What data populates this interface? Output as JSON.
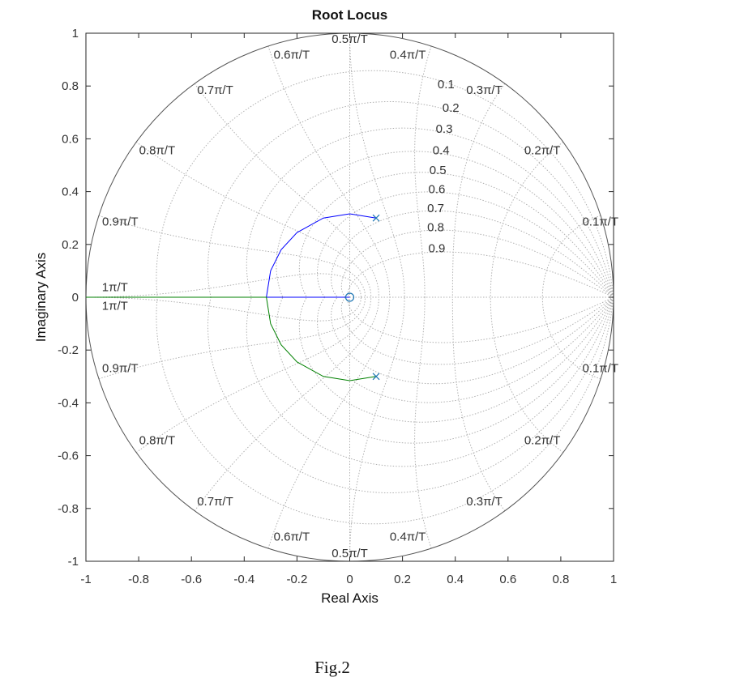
{
  "chart_data": {
    "type": "root-locus",
    "title": "Root Locus",
    "xlabel": "Real Axis",
    "ylabel": "Imaginary Axis",
    "xlim": [
      -1,
      1
    ],
    "ylim": [
      -1,
      1
    ],
    "grid": true,
    "xticks": [
      "-1",
      "-0.8",
      "-0.6",
      "-0.4",
      "-0.2",
      "0",
      "0.2",
      "0.4",
      "0.6",
      "0.8",
      "1"
    ],
    "yticks": [
      "1",
      "0.8",
      "0.6",
      "0.4",
      "0.2",
      "0",
      "-0.2",
      "-0.4",
      "-0.6",
      "-0.8",
      "-1"
    ],
    "zeta_values": [
      "0.1",
      "0.2",
      "0.3",
      "0.4",
      "0.5",
      "0.6",
      "0.7",
      "0.8",
      "0.9"
    ],
    "wn_labels": [
      "0.1π/T",
      "0.2π/T",
      "0.3π/T",
      "0.4π/T",
      "0.5π/T",
      "0.6π/T",
      "0.7π/T",
      "0.8π/T",
      "0.9π/T",
      "1π/T"
    ],
    "poles": [
      [
        0.1,
        0.3
      ],
      [
        0.1,
        -0.3
      ]
    ],
    "zeros": [
      [
        0,
        0
      ]
    ],
    "branches": [
      {
        "color": "#0000ff",
        "points": [
          [
            0.1,
            0.3
          ],
          [
            0.0,
            0.316
          ],
          [
            -0.1,
            0.3
          ],
          [
            -0.2,
            0.245
          ],
          [
            -0.26,
            0.18
          ],
          [
            -0.3,
            0.1
          ],
          [
            -0.316,
            0.0
          ],
          [
            0,
            0
          ]
        ]
      },
      {
        "color": "#008000",
        "points": [
          [
            0.1,
            -0.3
          ],
          [
            0.0,
            -0.316
          ],
          [
            -0.1,
            -0.3
          ],
          [
            -0.2,
            -0.245
          ],
          [
            -0.26,
            -0.18
          ],
          [
            -0.3,
            -0.1
          ],
          [
            -0.316,
            0.0
          ],
          [
            -1,
            0
          ]
        ]
      }
    ]
  },
  "caption": "Fig.2"
}
